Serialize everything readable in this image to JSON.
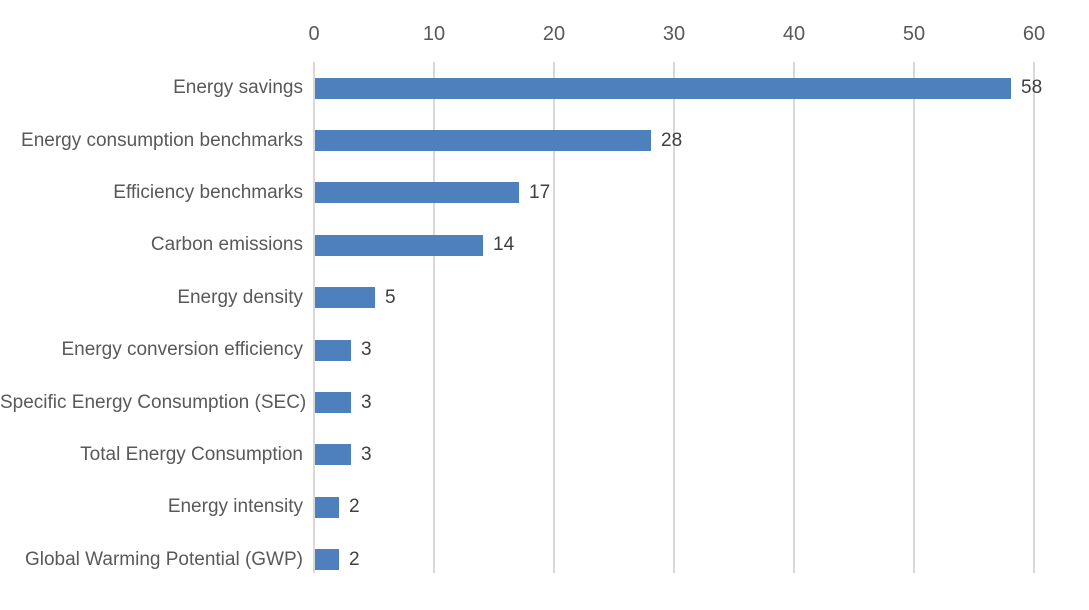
{
  "chart_data": {
    "type": "bar",
    "orientation": "horizontal",
    "title": "",
    "xlabel": "",
    "ylabel": "",
    "categories": [
      "Energy savings",
      "Energy consumption benchmarks",
      "Efficiency benchmarks",
      "Carbon emissions",
      "Energy density",
      "Energy conversion efficiency",
      "Specific Energy Consumption (SEC)",
      "Total Energy Consumption",
      "Energy intensity",
      "Global Warming Potential (GWP)"
    ],
    "values": [
      58,
      28,
      17,
      14,
      5,
      3,
      3,
      3,
      2,
      2
    ],
    "data_labels": [
      "58",
      "28",
      "17",
      "14",
      "5",
      "3",
      "3",
      "3",
      "2",
      "2"
    ],
    "x_ticks": [
      0,
      10,
      20,
      30,
      40,
      50,
      60
    ],
    "xlim": [
      0,
      60
    ],
    "tick_position": "top",
    "grid": "vertical",
    "legend": "none",
    "colors": {
      "bar": "#4E80BD",
      "gridline": "#D9D9D9",
      "axis_text": "#595959",
      "value_text": "#404040",
      "background": "#FFFFFF"
    }
  }
}
